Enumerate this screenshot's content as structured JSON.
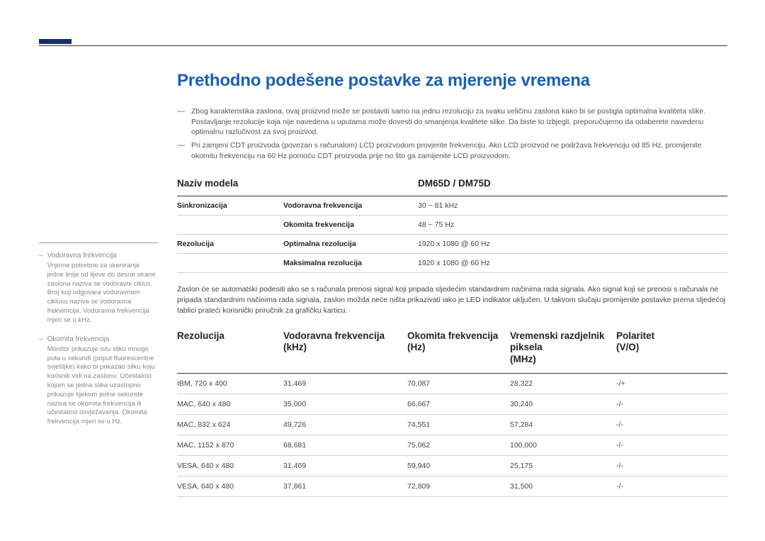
{
  "theme": {
    "title_color": "#1a5fb4",
    "text_color": "#444444",
    "muted_color": "#888888",
    "rule_color": "#333333",
    "light_rule": "#d0d0d0",
    "accent_bar": "#1a2a6c",
    "background": "#ffffff"
  },
  "title": "Prethodno podešene postavke za mjerenje vremena",
  "notes": [
    "Zbog karakteristika zaslona, ovaj proizvod može se postaviti samo na jednu rezoluciju za svaku veličinu zaslona kako bi se postigla optimalna kvaliteta slike. Postavljanje rezolucije koja nije navedena u uputama može dovesti do smanjenja kvalitete slike. Da biste to izbjegli, preporučujemo da odaberete navedenu optimalnu razlučivost za svoj proizvod.",
    "Pri zamjeni CDT proizvoda (povezan s računalom) LCD proizvodom provjerite frekvenciju. Ako LCD proizvod ne podržava frekvenciju od 85 Hz, promijenite okomitu frekvenciju na 60 Hz pomoću CDT proizvoda prije no što ga zamijenite LCD proizvodom."
  ],
  "model_table": {
    "headers": [
      "Naziv modela",
      "",
      "DM65D / DM75D"
    ],
    "rows": [
      [
        "Sinkronizacija",
        "Vodoravna frekvencija",
        "30 ~ 81 kHz"
      ],
      [
        "",
        "Okomita frekvencija",
        "48 ~ 75 Hz"
      ],
      [
        "Rezolucija",
        "Optimalna rezolucija",
        "1920 x 1080 @ 60 Hz"
      ],
      [
        "",
        "Maksimalna rezolucija",
        "1920 x 1080 @ 60 Hz"
      ]
    ]
  },
  "intertext": "Zaslon će se automatski podesiti ako se s računala prenosi signal koji pripada sljedećim standardnim načinima rada signala. Ako signal koji se prenosi s računala ne pripada standardnim načinima rada signala, zaslon možda neće ništa prikazivati iako je LED indikator uključen. U takvom slučaju promijenite postavke prema sljedećoj tablici prateći korisnički priručnik za grafičku karticu.",
  "timing_table": {
    "headers": [
      {
        "main": "Rezolucija",
        "sub": ""
      },
      {
        "main": "Vodoravna frekvencija",
        "sub": "(kHz)"
      },
      {
        "main": "Okomita frekvencija",
        "sub": "(Hz)"
      },
      {
        "main": "Vremenski razdjelnik piksela",
        "sub": "(MHz)"
      },
      {
        "main": "Polaritet",
        "sub": "(V/O)"
      }
    ],
    "rows": [
      [
        "IBM, 720 x 400",
        "31,469",
        "70,087",
        "28,322",
        "-/+"
      ],
      [
        "MAC, 640 x 480",
        "35,000",
        "66,667",
        "30,240",
        "-/-"
      ],
      [
        "MAC, 832 x 624",
        "49,726",
        "74,551",
        "57,284",
        "-/-"
      ],
      [
        "MAC, 1152 x 870",
        "68,681",
        "75,062",
        "100,000",
        "-/-"
      ],
      [
        "VESA, 640 x 480",
        "31,469",
        "59,940",
        "25,175",
        "-/-"
      ],
      [
        "VESA, 640 x 480",
        "37,861",
        "72,809",
        "31,500",
        "-/-"
      ]
    ]
  },
  "sidebar": [
    {
      "title": "Vodoravna frekvencija",
      "text": "Vrijeme potrebno za skeniranje jedne linije od lijeve do desne strane zaslona naziva se vodoravni ciklus. Broj koji odgovara vodoravnom ciklusu naziva se vodoravna frekvencija. Vodoravna frekvencija mjeri se u kHz."
    },
    {
      "title": "Okomita frekvencija",
      "text": "Monitor prikazuje istu sliku mnogo puta u sekundi (poput fluorescentne svjetiljke) kako bi prikazao sliku koju korisnik vidi na zaslonu. Učestalost kojom se jedna slika uzastopno prikazuje tijekom jedne sekunde naziva se okomita frekvencija ili učestalost osvježavanja. Okomita frekvencija mjeri se u Hz."
    }
  ]
}
